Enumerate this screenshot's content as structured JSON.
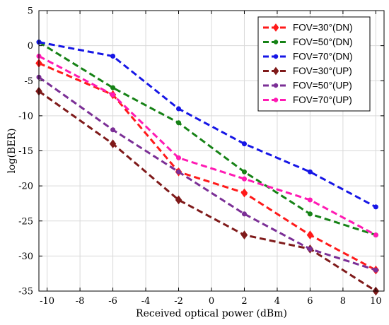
{
  "chart_data": {
    "type": "line",
    "xlabel": "Received optical power (dBm)",
    "ylabel": "log(BER)",
    "xlim": [
      -10.5,
      10.5
    ],
    "ylim": [
      -35,
      5
    ],
    "xticks": [
      -10,
      -8,
      -6,
      -4,
      -2,
      0,
      2,
      4,
      6,
      8,
      10
    ],
    "yticks": [
      5,
      0,
      -5,
      -10,
      -15,
      -20,
      -25,
      -30,
      -35
    ],
    "grid": true,
    "legend_position": "top-right",
    "series": [
      {
        "name": "FOV=30°(DN)",
        "color": "#ff1a1a",
        "marker": "diamond",
        "x": [
          -10.5,
          -6,
          -2,
          2,
          6,
          10
        ],
        "y": [
          -2.5,
          -7,
          -18,
          -21,
          -27,
          -32
        ]
      },
      {
        "name": "FOV=50°(DN)",
        "color": "#168216",
        "marker": "circle",
        "x": [
          -10.5,
          -6,
          -2,
          2,
          6,
          10
        ],
        "y": [
          0.5,
          -6,
          -11,
          -18,
          -24,
          -27
        ]
      },
      {
        "name": "FOV=70°(DN)",
        "color": "#1616e6",
        "marker": "circle",
        "x": [
          -10.5,
          -6,
          -2,
          2,
          6,
          10
        ],
        "y": [
          0.5,
          -1.5,
          -9,
          -14,
          -18,
          -23
        ]
      },
      {
        "name": "FOV=30°(UP)",
        "color": "#7f1a1a",
        "marker": "diamond",
        "x": [
          -10.5,
          -6,
          -2,
          2,
          6,
          10
        ],
        "y": [
          -6.5,
          -14,
          -22,
          -27,
          -29,
          -35
        ]
      },
      {
        "name": "FOV=50°(UP)",
        "color": "#7b2f96",
        "marker": "circle",
        "x": [
          -10.5,
          -6,
          -2,
          2,
          6,
          10
        ],
        "y": [
          -4.5,
          -12,
          -18,
          -24,
          -29,
          -32
        ]
      },
      {
        "name": "FOV=70°(UP)",
        "color": "#ff1ab3",
        "marker": "circle",
        "x": [
          -10.5,
          -6,
          -2,
          2,
          6,
          10
        ],
        "y": [
          -1.5,
          -7,
          -16,
          -19,
          -22,
          -27
        ]
      }
    ]
  }
}
